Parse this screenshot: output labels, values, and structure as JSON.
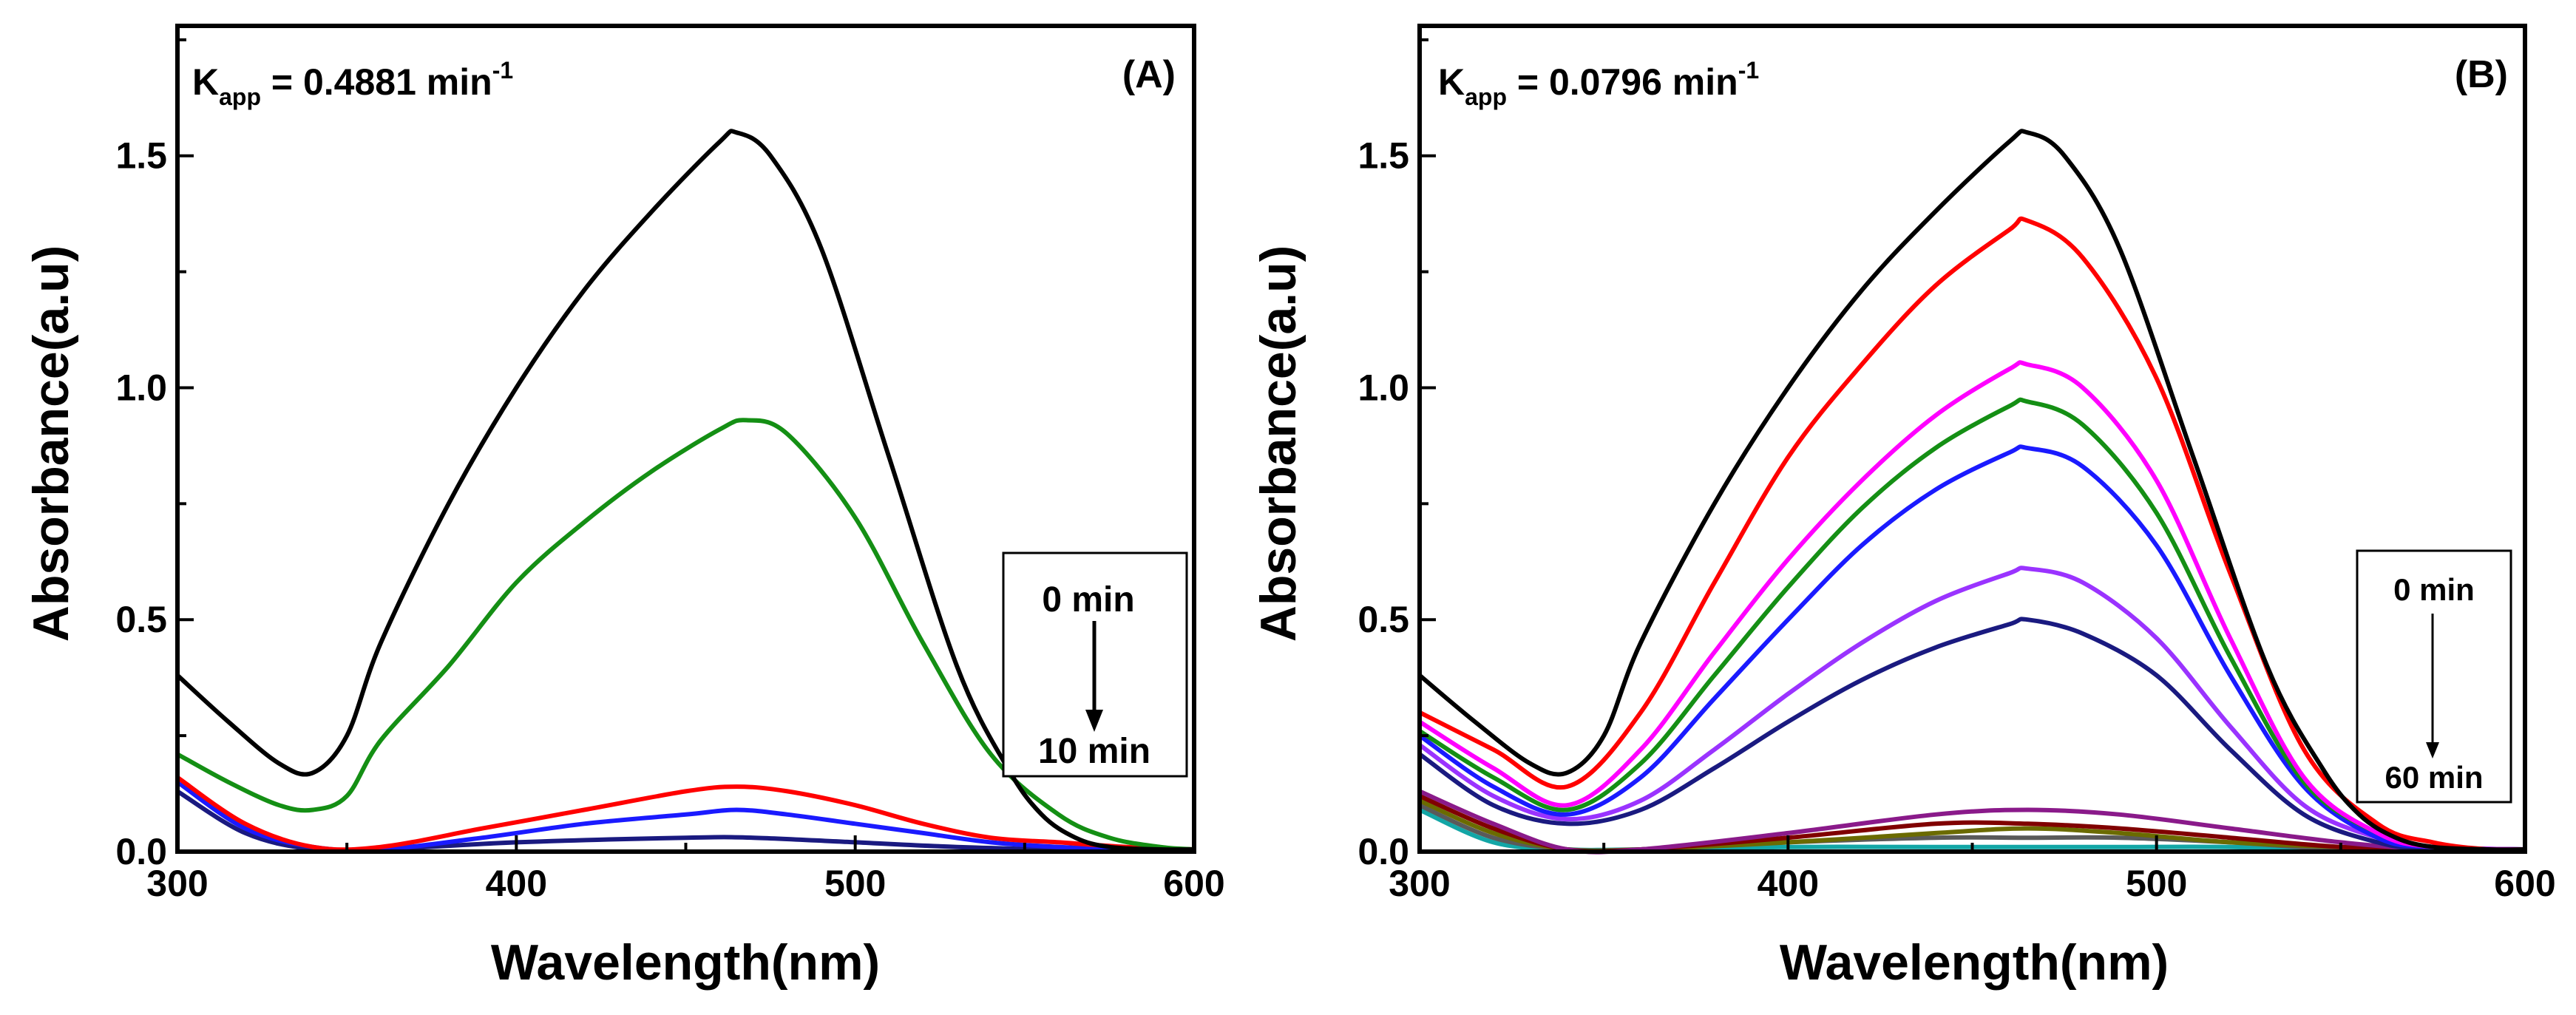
{
  "chart_data": [
    {
      "type": "line",
      "panel_label": "(A)",
      "kapp": {
        "main": "K",
        "sub": "app",
        "value_text": " = 0.4881 min",
        "sup": "-1"
      },
      "xlabel": "Wavelength(nm)",
      "ylabel": "Absorbance(a.u)",
      "xlim": [
        300,
        600
      ],
      "ylim": [
        0,
        1.78
      ],
      "xticks": [
        300,
        400,
        500,
        600
      ],
      "xticklabels": [
        "300",
        "400",
        "500",
        "600"
      ],
      "yticks": [
        0,
        0.5,
        1.0,
        1.5
      ],
      "yticklabels": [
        "0.0",
        "0.5",
        "1.0",
        "1.5"
      ],
      "legend": {
        "start": "0 min",
        "end": "10 min",
        "placement": "right"
      },
      "series": [
        {
          "name": "0 min",
          "color": "#000000",
          "x": [
            300,
            315,
            330,
            340,
            350,
            360,
            380,
            400,
            420,
            440,
            460,
            465,
            475,
            490,
            510,
            530,
            545,
            555,
            565,
            575,
            590,
            600
          ],
          "y": [
            0.38,
            0.28,
            0.19,
            0.17,
            0.25,
            0.45,
            0.75,
            1.0,
            1.21,
            1.38,
            1.53,
            1.55,
            1.5,
            1.3,
            0.85,
            0.4,
            0.18,
            0.08,
            0.03,
            0.01,
            0.0,
            0.0
          ]
        },
        {
          "name": "green",
          "color": "#148f14",
          "x": [
            300,
            315,
            330,
            340,
            350,
            360,
            380,
            400,
            420,
            440,
            460,
            468,
            480,
            500,
            520,
            540,
            560,
            575,
            590,
            600
          ],
          "y": [
            0.21,
            0.15,
            0.1,
            0.09,
            0.12,
            0.24,
            0.4,
            0.58,
            0.71,
            0.82,
            0.91,
            0.93,
            0.9,
            0.72,
            0.45,
            0.21,
            0.08,
            0.03,
            0.01,
            0.0
          ]
        },
        {
          "name": "red",
          "color": "#ff0000",
          "x": [
            300,
            320,
            340,
            360,
            390,
            420,
            450,
            465,
            480,
            500,
            520,
            540,
            560,
            580,
            600
          ],
          "y": [
            0.16,
            0.06,
            0.01,
            0.01,
            0.05,
            0.09,
            0.13,
            0.14,
            0.13,
            0.1,
            0.06,
            0.03,
            0.02,
            0.01,
            0.0
          ]
        },
        {
          "name": "blue",
          "color": "#1a1aff",
          "x": [
            300,
            320,
            340,
            360,
            390,
            420,
            450,
            465,
            480,
            500,
            520,
            540,
            560,
            580,
            600
          ],
          "y": [
            0.15,
            0.05,
            0.01,
            0.0,
            0.03,
            0.06,
            0.08,
            0.09,
            0.08,
            0.06,
            0.04,
            0.02,
            0.01,
            0.0,
            0.0
          ]
        },
        {
          "name": "10 min",
          "color": "#1a1a80",
          "x": [
            300,
            320,
            340,
            360,
            400,
            450,
            470,
            500,
            530,
            560,
            600
          ],
          "y": [
            0.13,
            0.04,
            0.0,
            0.0,
            0.02,
            0.03,
            0.03,
            0.02,
            0.01,
            0.0,
            0.0
          ]
        }
      ]
    },
    {
      "type": "line",
      "panel_label": "(B)",
      "kapp": {
        "main": "K",
        "sub": "app",
        "value_text": " = 0.0796 min",
        "sup": "-1"
      },
      "xlabel": "Wavelength(nm)",
      "ylabel": "Absorbance(a.u)",
      "xlim": [
        300,
        600
      ],
      "ylim": [
        0,
        1.78
      ],
      "xticks": [
        300,
        400,
        500,
        600
      ],
      "xticklabels": [
        "300",
        "400",
        "500",
        "600"
      ],
      "yticks": [
        0,
        0.5,
        1.0,
        1.5
      ],
      "yticklabels": [
        "0.0",
        "0.5",
        "1.0",
        "1.5"
      ],
      "legend": {
        "start": "0 min",
        "end": "60 min",
        "placement": "right"
      },
      "series": [
        {
          "name": "0 min",
          "color": "#000000",
          "x": [
            300,
            315,
            330,
            340,
            350,
            360,
            380,
            400,
            420,
            440,
            460,
            465,
            475,
            490,
            510,
            530,
            545,
            555,
            565,
            575,
            590,
            600
          ],
          "y": [
            0.38,
            0.28,
            0.19,
            0.17,
            0.25,
            0.45,
            0.75,
            1.0,
            1.21,
            1.38,
            1.53,
            1.55,
            1.5,
            1.3,
            0.85,
            0.4,
            0.18,
            0.08,
            0.03,
            0.01,
            0.0,
            0.0
          ]
        },
        {
          "name": "red",
          "color": "#ff0000",
          "x": [
            300,
            320,
            340,
            360,
            380,
            400,
            420,
            440,
            460,
            465,
            480,
            500,
            520,
            540,
            560,
            575,
            590,
            600
          ],
          "y": [
            0.3,
            0.22,
            0.14,
            0.3,
            0.58,
            0.85,
            1.05,
            1.22,
            1.34,
            1.36,
            1.28,
            1.02,
            0.6,
            0.22,
            0.06,
            0.02,
            0.0,
            0.0
          ]
        },
        {
          "name": "magenta",
          "color": "#ff00ff",
          "x": [
            300,
            320,
            340,
            360,
            380,
            400,
            420,
            440,
            460,
            465,
            480,
            500,
            520,
            540,
            560,
            575,
            600
          ],
          "y": [
            0.28,
            0.18,
            0.1,
            0.22,
            0.43,
            0.63,
            0.8,
            0.94,
            1.04,
            1.05,
            1.0,
            0.8,
            0.46,
            0.16,
            0.04,
            0.01,
            0.0
          ]
        },
        {
          "name": "green",
          "color": "#148f14",
          "x": [
            300,
            320,
            340,
            360,
            380,
            400,
            420,
            440,
            460,
            465,
            480,
            500,
            520,
            540,
            560,
            575,
            600
          ],
          "y": [
            0.26,
            0.16,
            0.09,
            0.19,
            0.38,
            0.57,
            0.74,
            0.87,
            0.96,
            0.97,
            0.92,
            0.73,
            0.42,
            0.15,
            0.04,
            0.01,
            0.0
          ]
        },
        {
          "name": "blue",
          "color": "#1a1aff",
          "x": [
            300,
            320,
            340,
            360,
            380,
            400,
            420,
            440,
            460,
            465,
            480,
            500,
            520,
            540,
            560,
            575,
            600
          ],
          "y": [
            0.25,
            0.14,
            0.08,
            0.16,
            0.33,
            0.5,
            0.66,
            0.78,
            0.86,
            0.87,
            0.83,
            0.66,
            0.38,
            0.14,
            0.03,
            0.01,
            0.0
          ]
        },
        {
          "name": "violet",
          "color": "#9a33ff",
          "x": [
            300,
            320,
            340,
            360,
            380,
            400,
            420,
            440,
            460,
            465,
            480,
            500,
            520,
            540,
            560,
            575,
            600
          ],
          "y": [
            0.23,
            0.12,
            0.07,
            0.11,
            0.22,
            0.34,
            0.45,
            0.54,
            0.6,
            0.61,
            0.58,
            0.46,
            0.27,
            0.1,
            0.03,
            0.01,
            0.0
          ]
        },
        {
          "name": "navy",
          "color": "#1a1a80",
          "x": [
            300,
            320,
            340,
            360,
            380,
            400,
            420,
            440,
            460,
            465,
            480,
            500,
            520,
            540,
            560,
            575,
            600
          ],
          "y": [
            0.21,
            0.1,
            0.06,
            0.09,
            0.18,
            0.28,
            0.37,
            0.44,
            0.49,
            0.5,
            0.47,
            0.38,
            0.22,
            0.08,
            0.02,
            0.0,
            0.0
          ]
        },
        {
          "name": "purple",
          "color": "#8a1a8a",
          "x": [
            300,
            320,
            340,
            360,
            400,
            440,
            465,
            490,
            520,
            550,
            575,
            600
          ],
          "y": [
            0.13,
            0.06,
            0.0,
            0.0,
            0.04,
            0.08,
            0.09,
            0.08,
            0.05,
            0.02,
            0.0,
            0.0
          ]
        },
        {
          "name": "dark-red",
          "color": "#800000",
          "x": [
            300,
            320,
            340,
            360,
            400,
            440,
            465,
            490,
            520,
            550,
            575,
            600
          ],
          "y": [
            0.12,
            0.05,
            0.0,
            0.0,
            0.03,
            0.06,
            0.06,
            0.05,
            0.03,
            0.01,
            0.0,
            0.0
          ]
        },
        {
          "name": "olive",
          "color": "#6b6b00",
          "x": [
            300,
            320,
            340,
            360,
            400,
            440,
            465,
            490,
            520,
            550,
            575,
            600
          ],
          "y": [
            0.11,
            0.04,
            0.0,
            0.0,
            0.02,
            0.04,
            0.05,
            0.04,
            0.02,
            0.01,
            0.0,
            0.0
          ]
        },
        {
          "name": "gray",
          "color": "#5a5a5a",
          "x": [
            300,
            320,
            340,
            360,
            400,
            440,
            465,
            490,
            520,
            550,
            575,
            600
          ],
          "y": [
            0.1,
            0.03,
            0.0,
            0.0,
            0.02,
            0.03,
            0.03,
            0.03,
            0.02,
            0.0,
            0.0,
            0.0
          ]
        },
        {
          "name": "60 min",
          "color": "#13a6a6",
          "x": [
            300,
            320,
            340,
            360,
            400,
            440,
            465,
            490,
            520,
            550,
            575,
            600
          ],
          "y": [
            0.09,
            0.02,
            0.0,
            0.0,
            0.01,
            0.01,
            0.01,
            0.01,
            0.01,
            0.0,
            0.0,
            0.0
          ]
        }
      ]
    }
  ]
}
